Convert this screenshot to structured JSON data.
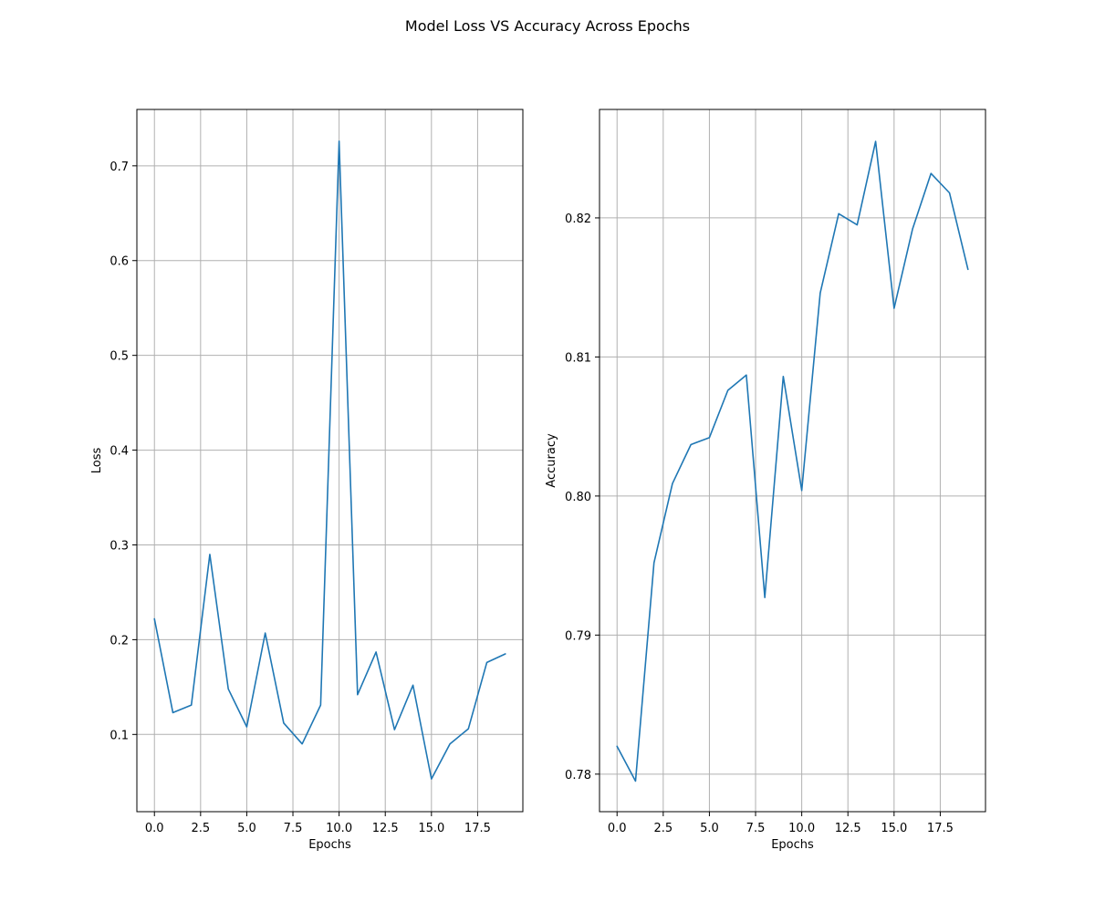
{
  "figure": {
    "title": "Model Loss VS Accuracy Across Epochs"
  },
  "chart_data": [
    {
      "type": "line",
      "title": "",
      "xlabel": "Epochs",
      "ylabel": "Loss",
      "xlim": [
        -0.95,
        19.95
      ],
      "ylim": [
        0.0185,
        0.7595
      ],
      "xticks": [
        0.0,
        2.5,
        5.0,
        7.5,
        10.0,
        12.5,
        15.0,
        17.5
      ],
      "xtick_labels": [
        "0.0",
        "2.5",
        "5.0",
        "7.5",
        "10.0",
        "12.5",
        "15.0",
        "17.5"
      ],
      "yticks": [
        0.1,
        0.2,
        0.3,
        0.4,
        0.5,
        0.6,
        0.7
      ],
      "ytick_labels": [
        "0.1",
        "0.2",
        "0.3",
        "0.4",
        "0.5",
        "0.6",
        "0.7"
      ],
      "grid": true,
      "color": "#1f77b4",
      "x": [
        0,
        1,
        2,
        3,
        4,
        5,
        6,
        7,
        8,
        9,
        10,
        11,
        12,
        13,
        14,
        15,
        16,
        17,
        18,
        19
      ],
      "y": [
        0.222,
        0.123,
        0.131,
        0.29,
        0.148,
        0.108,
        0.207,
        0.112,
        0.09,
        0.131,
        0.726,
        0.142,
        0.187,
        0.105,
        0.152,
        0.053,
        0.09,
        0.106,
        0.176,
        0.185
      ]
    },
    {
      "type": "line",
      "title": "",
      "xlabel": "Epochs",
      "ylabel": "Accuracy",
      "xlim": [
        -0.95,
        19.95
      ],
      "ylim": [
        0.7773,
        0.8278
      ],
      "xticks": [
        0.0,
        2.5,
        5.0,
        7.5,
        10.0,
        12.5,
        15.0,
        17.5
      ],
      "xtick_labels": [
        "0.0",
        "2.5",
        "5.0",
        "7.5",
        "10.0",
        "12.5",
        "15.0",
        "17.5"
      ],
      "yticks": [
        0.78,
        0.79,
        0.8,
        0.81,
        0.82
      ],
      "ytick_labels": [
        "0.78",
        "0.79",
        "0.80",
        "0.81",
        "0.82"
      ],
      "grid": true,
      "color": "#1f77b4",
      "x": [
        0,
        1,
        2,
        3,
        4,
        5,
        6,
        7,
        8,
        9,
        10,
        11,
        12,
        13,
        14,
        15,
        16,
        17,
        18,
        19
      ],
      "y": [
        0.782,
        0.7795,
        0.7952,
        0.8009,
        0.8037,
        0.8042,
        0.8076,
        0.8087,
        0.7927,
        0.8086,
        0.8004,
        0.8146,
        0.8203,
        0.8195,
        0.8255,
        0.8135,
        0.8192,
        0.8232,
        0.8218,
        0.8163
      ]
    }
  ]
}
